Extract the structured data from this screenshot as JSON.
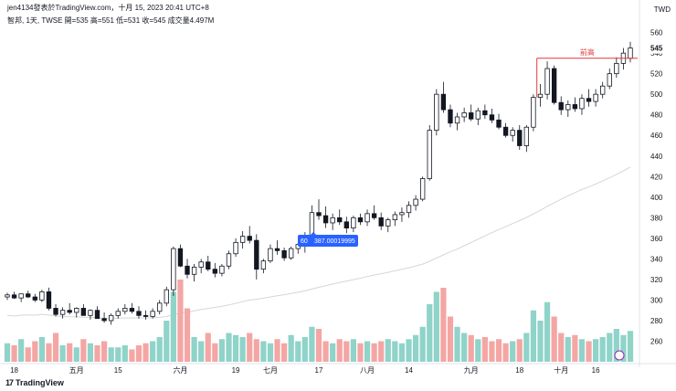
{
  "header": {
    "line1": "jen4134發表於TradingView.com，十月 15, 2023 20:41 UTC+8",
    "line2": "智邦, 1天, TWSE  開=535  高=551  低=531  收=545  成交量4.497M"
  },
  "currency": "TWD",
  "brand": "TradingView",
  "colors": {
    "up": "#26a69a",
    "down": "#ef5350",
    "up_vol": "#8fd3c9",
    "down_vol": "#f4a6a4",
    "ma": "#d6d6d6",
    "resist": "#e0393e",
    "tooltip": "#2962ff"
  },
  "chart_data": {
    "type": "candlestick",
    "ylim": [
      240,
      565
    ],
    "yticks": [
      260,
      280,
      300,
      320,
      340,
      360,
      380,
      400,
      420,
      440,
      460,
      480,
      500,
      520,
      540,
      560
    ],
    "xticks": [
      {
        "label": "18",
        "index": 1
      },
      {
        "label": "五月",
        "index": 10
      },
      {
        "label": "15",
        "index": 16
      },
      {
        "label": "六月",
        "index": 25
      },
      {
        "label": "19",
        "index": 33
      },
      {
        "label": "七月",
        "index": 38
      },
      {
        "label": "17",
        "index": 45
      },
      {
        "label": "八月",
        "index": 52
      },
      {
        "label": "14",
        "index": 58
      },
      {
        "label": "九月",
        "index": 67
      },
      {
        "label": "18",
        "index": 74
      },
      {
        "label": "十月",
        "index": 80
      },
      {
        "label": "16",
        "index": 85
      }
    ],
    "last_price": 545,
    "resistance": {
      "label": "前高",
      "value": 535
    },
    "tooltip_label": "60",
    "tooltip_value": "387.00019995",
    "candles": [
      [
        303,
        307,
        300,
        305,
        9
      ],
      [
        305,
        308,
        301,
        302,
        8
      ],
      [
        302,
        305,
        298,
        306,
        11
      ],
      [
        306,
        309,
        302,
        303,
        7
      ],
      [
        303,
        306,
        298,
        300,
        10
      ],
      [
        300,
        310,
        298,
        308,
        12
      ],
      [
        308,
        312,
        290,
        292,
        9
      ],
      [
        292,
        296,
        284,
        286,
        14
      ],
      [
        286,
        293,
        282,
        290,
        8
      ],
      [
        290,
        297,
        286,
        288,
        9
      ],
      [
        288,
        293,
        283,
        292,
        7
      ],
      [
        292,
        296,
        288,
        285,
        11
      ],
      [
        285,
        291,
        281,
        290,
        9
      ],
      [
        290,
        294,
        285,
        282,
        8
      ],
      [
        282,
        288,
        278,
        280,
        10
      ],
      [
        280,
        287,
        276,
        285,
        7
      ],
      [
        285,
        292,
        282,
        289,
        7
      ],
      [
        289,
        296,
        286,
        292,
        8
      ],
      [
        292,
        297,
        287,
        289,
        6
      ],
      [
        289,
        294,
        282,
        285,
        8
      ],
      [
        285,
        290,
        281,
        284,
        9
      ],
      [
        284,
        292,
        282,
        289,
        10
      ],
      [
        289,
        300,
        286,
        297,
        12
      ],
      [
        297,
        313,
        294,
        310,
        20
      ],
      [
        310,
        352,
        304,
        350,
        34
      ],
      [
        350,
        354,
        332,
        333,
        40
      ],
      [
        333,
        340,
        321,
        325,
        26
      ],
      [
        325,
        335,
        318,
        332,
        12
      ],
      [
        332,
        340,
        326,
        337,
        10
      ],
      [
        337,
        343,
        328,
        330,
        14
      ],
      [
        330,
        336,
        322,
        326,
        9
      ],
      [
        326,
        335,
        323,
        333,
        11
      ],
      [
        333,
        348,
        330,
        345,
        14
      ],
      [
        345,
        360,
        342,
        356,
        13
      ],
      [
        356,
        367,
        350,
        362,
        12
      ],
      [
        362,
        372,
        355,
        358,
        14
      ],
      [
        358,
        364,
        320,
        330,
        11
      ],
      [
        330,
        340,
        326,
        338,
        10
      ],
      [
        338,
        354,
        336,
        350,
        9
      ],
      [
        350,
        358,
        344,
        348,
        11
      ],
      [
        348,
        351,
        338,
        341,
        9
      ],
      [
        341,
        352,
        339,
        350,
        13
      ],
      [
        350,
        356,
        345,
        354,
        10
      ],
      [
        354,
        366,
        346,
        360,
        12
      ],
      [
        360,
        392,
        356,
        385,
        17
      ],
      [
        385,
        398,
        378,
        382,
        16
      ],
      [
        382,
        391,
        370,
        375,
        10
      ],
      [
        375,
        384,
        368,
        380,
        9
      ],
      [
        380,
        388,
        373,
        376,
        11
      ],
      [
        376,
        381,
        365,
        370,
        10
      ],
      [
        370,
        382,
        366,
        380,
        11
      ],
      [
        380,
        384,
        373,
        376,
        9
      ],
      [
        376,
        388,
        372,
        384,
        10
      ],
      [
        384,
        392,
        378,
        380,
        9
      ],
      [
        380,
        385,
        368,
        372,
        10
      ],
      [
        372,
        380,
        366,
        378,
        11
      ],
      [
        378,
        386,
        372,
        383,
        10
      ],
      [
        383,
        390,
        376,
        385,
        9
      ],
      [
        385,
        396,
        380,
        392,
        11
      ],
      [
        392,
        402,
        387,
        398,
        13
      ],
      [
        398,
        420,
        396,
        418,
        17
      ],
      [
        418,
        470,
        416,
        465,
        28
      ],
      [
        465,
        505,
        460,
        500,
        34
      ],
      [
        500,
        512,
        482,
        485,
        36
      ],
      [
        485,
        490,
        468,
        472,
        22
      ],
      [
        472,
        482,
        465,
        478,
        17
      ],
      [
        478,
        487,
        473,
        482,
        14
      ],
      [
        482,
        490,
        474,
        476,
        13
      ],
      [
        476,
        487,
        470,
        484,
        11
      ],
      [
        484,
        490,
        476,
        480,
        12
      ],
      [
        480,
        486,
        472,
        475,
        10
      ],
      [
        475,
        481,
        466,
        468,
        11
      ],
      [
        468,
        472,
        458,
        460,
        9
      ],
      [
        460,
        468,
        454,
        465,
        10
      ],
      [
        465,
        470,
        446,
        450,
        11
      ],
      [
        450,
        470,
        444,
        468,
        14
      ],
      [
        468,
        500,
        464,
        497,
        25
      ],
      [
        497,
        510,
        488,
        500,
        20
      ],
      [
        500,
        532,
        495,
        525,
        29
      ],
      [
        525,
        528,
        490,
        492,
        22
      ],
      [
        492,
        498,
        480,
        485,
        14
      ],
      [
        485,
        494,
        478,
        490,
        12
      ],
      [
        490,
        497,
        483,
        486,
        13
      ],
      [
        486,
        500,
        480,
        496,
        11
      ],
      [
        496,
        505,
        488,
        493,
        10
      ],
      [
        493,
        505,
        488,
        500,
        11
      ],
      [
        500,
        512,
        496,
        508,
        12
      ],
      [
        508,
        525,
        505,
        520,
        14
      ],
      [
        520,
        536,
        516,
        530,
        16
      ],
      [
        530,
        545,
        524,
        540,
        13
      ],
      [
        535,
        551,
        531,
        545,
        15
      ]
    ]
  }
}
